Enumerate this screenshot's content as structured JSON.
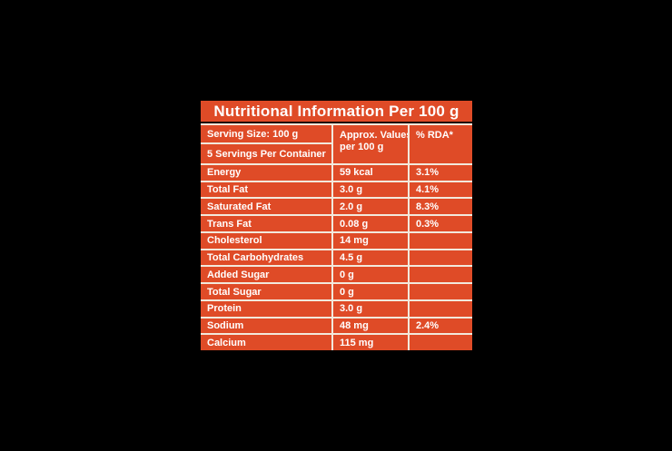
{
  "canvas": {
    "background": "#000000"
  },
  "label": {
    "title": "Nutritional Information Per 100 g",
    "colors": {
      "panel": "#DF4B27",
      "border": "#F2E9DC",
      "title_divider": "#200700",
      "text": "#FFFFFF"
    },
    "header": {
      "serving_size": "Serving Size: 100 g",
      "servings_per_container": "5 Servings Per Container",
      "values_header_line1": "Approx. Values",
      "values_header_line2": "per 100 g",
      "rda_header": "% RDA*"
    },
    "rows": [
      {
        "nutrient": "Energy",
        "value": "59 kcal",
        "rda": "3.1%"
      },
      {
        "nutrient": "Total Fat",
        "value": "3.0 g",
        "rda": "4.1%"
      },
      {
        "nutrient": "Saturated Fat",
        "value": "2.0 g",
        "rda": "8.3%"
      },
      {
        "nutrient": "Trans Fat",
        "value": "0.08 g",
        "rda": "0.3%"
      },
      {
        "nutrient": "Cholesterol",
        "value": "14 mg",
        "rda": ""
      },
      {
        "nutrient": "Total Carbohydrates",
        "value": "4.5 g",
        "rda": ""
      },
      {
        "nutrient": "Added Sugar",
        "value": "0 g",
        "rda": ""
      },
      {
        "nutrient": "Total Sugar",
        "value": "0 g",
        "rda": ""
      },
      {
        "nutrient": "Protein",
        "value": "3.0 g",
        "rda": ""
      },
      {
        "nutrient": "Sodium",
        "value": "48 mg",
        "rda": "2.4%"
      },
      {
        "nutrient": "Calcium",
        "value": "115 mg",
        "rda": ""
      }
    ]
  }
}
